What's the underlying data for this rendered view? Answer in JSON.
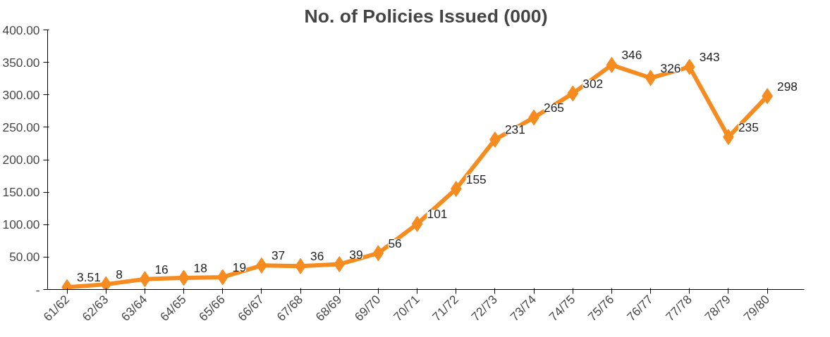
{
  "chart_data": {
    "type": "line",
    "title": "No. of Policies Issued (000)",
    "categories": [
      "61/62",
      "62/63",
      "63/64",
      "64/65",
      "65/66",
      "66/67",
      "67/68",
      "68/69",
      "69/70",
      "70/71",
      "71/72",
      "72/73",
      "73/74",
      "74/75",
      "75/76",
      "76/77",
      "77/78",
      "78/79",
      "79/80"
    ],
    "series": [
      {
        "color": "#f68b1f",
        "values": [
          3.51,
          8,
          16,
          18,
          19,
          37,
          36,
          39,
          56,
          101,
          155,
          231,
          265,
          302,
          346,
          326,
          343,
          235,
          298
        ]
      }
    ],
    "ylim": [
      0,
      400
    ],
    "yticks": [
      {
        "value": 0,
        "label": "-"
      },
      {
        "value": 50,
        "label": "50.00"
      },
      {
        "value": 100,
        "label": "100.00"
      },
      {
        "value": 150,
        "label": "150.00"
      },
      {
        "value": 200,
        "label": "200.00"
      },
      {
        "value": 250,
        "label": "250.00"
      },
      {
        "value": 300,
        "label": "300.00"
      },
      {
        "value": 350,
        "label": "350.00"
      },
      {
        "value": 400,
        "label": "400.00"
      }
    ],
    "marker": "diamond",
    "data_labels": true,
    "grid": false
  }
}
